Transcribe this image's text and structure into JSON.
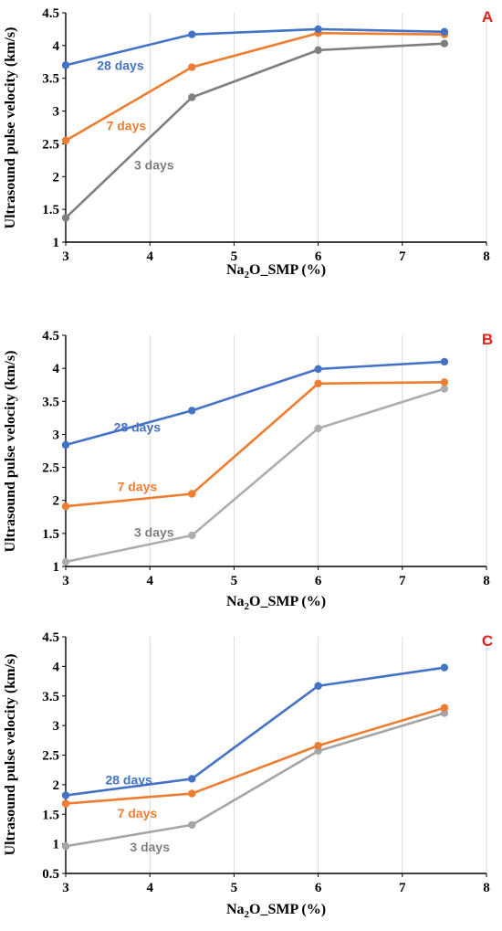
{
  "chart_data": [
    {
      "type": "line",
      "panel_label": "A",
      "xlabel_main": "Na",
      "xlabel_sub": "2",
      "xlabel_rest": "O_SMP (%)",
      "ylabel": "Ultrasound pulse velocity (km/s)",
      "xlim": [
        3,
        8
      ],
      "ylim": [
        1,
        4.5
      ],
      "xticks": [
        "3",
        "4",
        "5",
        "6",
        "7",
        "8"
      ],
      "yticks": [
        "1",
        "1.5",
        "2",
        "2.5",
        "3",
        "3.5",
        "4",
        "4.5"
      ],
      "grid": "vertical",
      "series": [
        {
          "name": "28 days",
          "color": "#4472c4",
          "x": [
            3,
            4.5,
            6,
            7.5
          ],
          "values": [
            3.7,
            4.17,
            4.25,
            4.21
          ],
          "label_at": [
            3.65,
            3.7
          ]
        },
        {
          "name": "7 days",
          "color": "#ed7d31",
          "x": [
            3,
            4.5,
            6,
            7.5
          ],
          "values": [
            2.55,
            3.67,
            4.19,
            4.17
          ],
          "label_at": [
            3.72,
            2.78
          ]
        },
        {
          "name": "3 days",
          "color": "#7f7f7f",
          "x": [
            3,
            4.5,
            6,
            7.5
          ],
          "values": [
            1.37,
            3.21,
            3.93,
            4.03
          ],
          "label_at": [
            4.05,
            2.18
          ]
        }
      ]
    },
    {
      "type": "line",
      "panel_label": "B",
      "xlabel_main": "Na",
      "xlabel_sub": "2",
      "xlabel_rest": "O_SMP (%)",
      "ylabel": "Ultrasound pulse velocity (km/s)",
      "xlim": [
        3,
        8
      ],
      "ylim": [
        1,
        4.5
      ],
      "xticks": [
        "3",
        "4",
        "5",
        "6",
        "7",
        "8"
      ],
      "yticks": [
        "1",
        "1.5",
        "2",
        "2.5",
        "3",
        "3.5",
        "4",
        "4.5"
      ],
      "grid": "vertical",
      "series": [
        {
          "name": "28 days",
          "color": "#4472c4",
          "x": [
            3,
            4.5,
            6,
            7.5
          ],
          "values": [
            2.84,
            3.36,
            3.99,
            4.1
          ],
          "label_at": [
            3.85,
            3.11
          ]
        },
        {
          "name": "7 days",
          "color": "#ed7d31",
          "x": [
            3,
            4.5,
            6,
            7.5
          ],
          "values": [
            1.91,
            2.1,
            3.77,
            3.79
          ],
          "label_at": [
            3.85,
            2.21
          ]
        },
        {
          "name": "3 days",
          "color": "#adadad",
          "labelcolor": "#7f7f7f",
          "x": [
            3,
            4.5,
            6,
            7.5
          ],
          "values": [
            1.07,
            1.47,
            3.09,
            3.69
          ],
          "label_at": [
            4.05,
            1.52
          ]
        }
      ]
    },
    {
      "type": "line",
      "panel_label": "C",
      "xlabel_main": "Na",
      "xlabel_sub": "2",
      "xlabel_rest": "O_SMP (%)",
      "ylabel": "Ultrasound pulse velocity (km/s)",
      "xlim": [
        3,
        8
      ],
      "ylim": [
        0.5,
        4.5
      ],
      "xticks": [
        "3",
        "4",
        "5",
        "6",
        "7",
        "8"
      ],
      "yticks": [
        "0.5",
        "1",
        "1.5",
        "2",
        "2.5",
        "3",
        "3.5",
        "4",
        "4.5"
      ],
      "grid": "vertical",
      "series": [
        {
          "name": "28 days",
          "color": "#4472c4",
          "x": [
            3,
            4.5,
            6,
            7.5
          ],
          "values": [
            1.82,
            2.1,
            3.67,
            3.98
          ],
          "label_at": [
            3.75,
            2.08
          ]
        },
        {
          "name": "7 days",
          "color": "#ed7d31",
          "x": [
            3,
            4.5,
            6,
            7.5
          ],
          "values": [
            1.68,
            1.85,
            2.66,
            3.3
          ],
          "label_at": [
            3.85,
            1.52
          ]
        },
        {
          "name": "3 days",
          "color": "#a5a5a5",
          "labelcolor": "#7f7f7f",
          "x": [
            3,
            4.5,
            6,
            7.5
          ],
          "values": [
            0.96,
            1.32,
            2.57,
            3.21
          ],
          "label_at": [
            4.0,
            0.95
          ]
        }
      ]
    }
  ]
}
